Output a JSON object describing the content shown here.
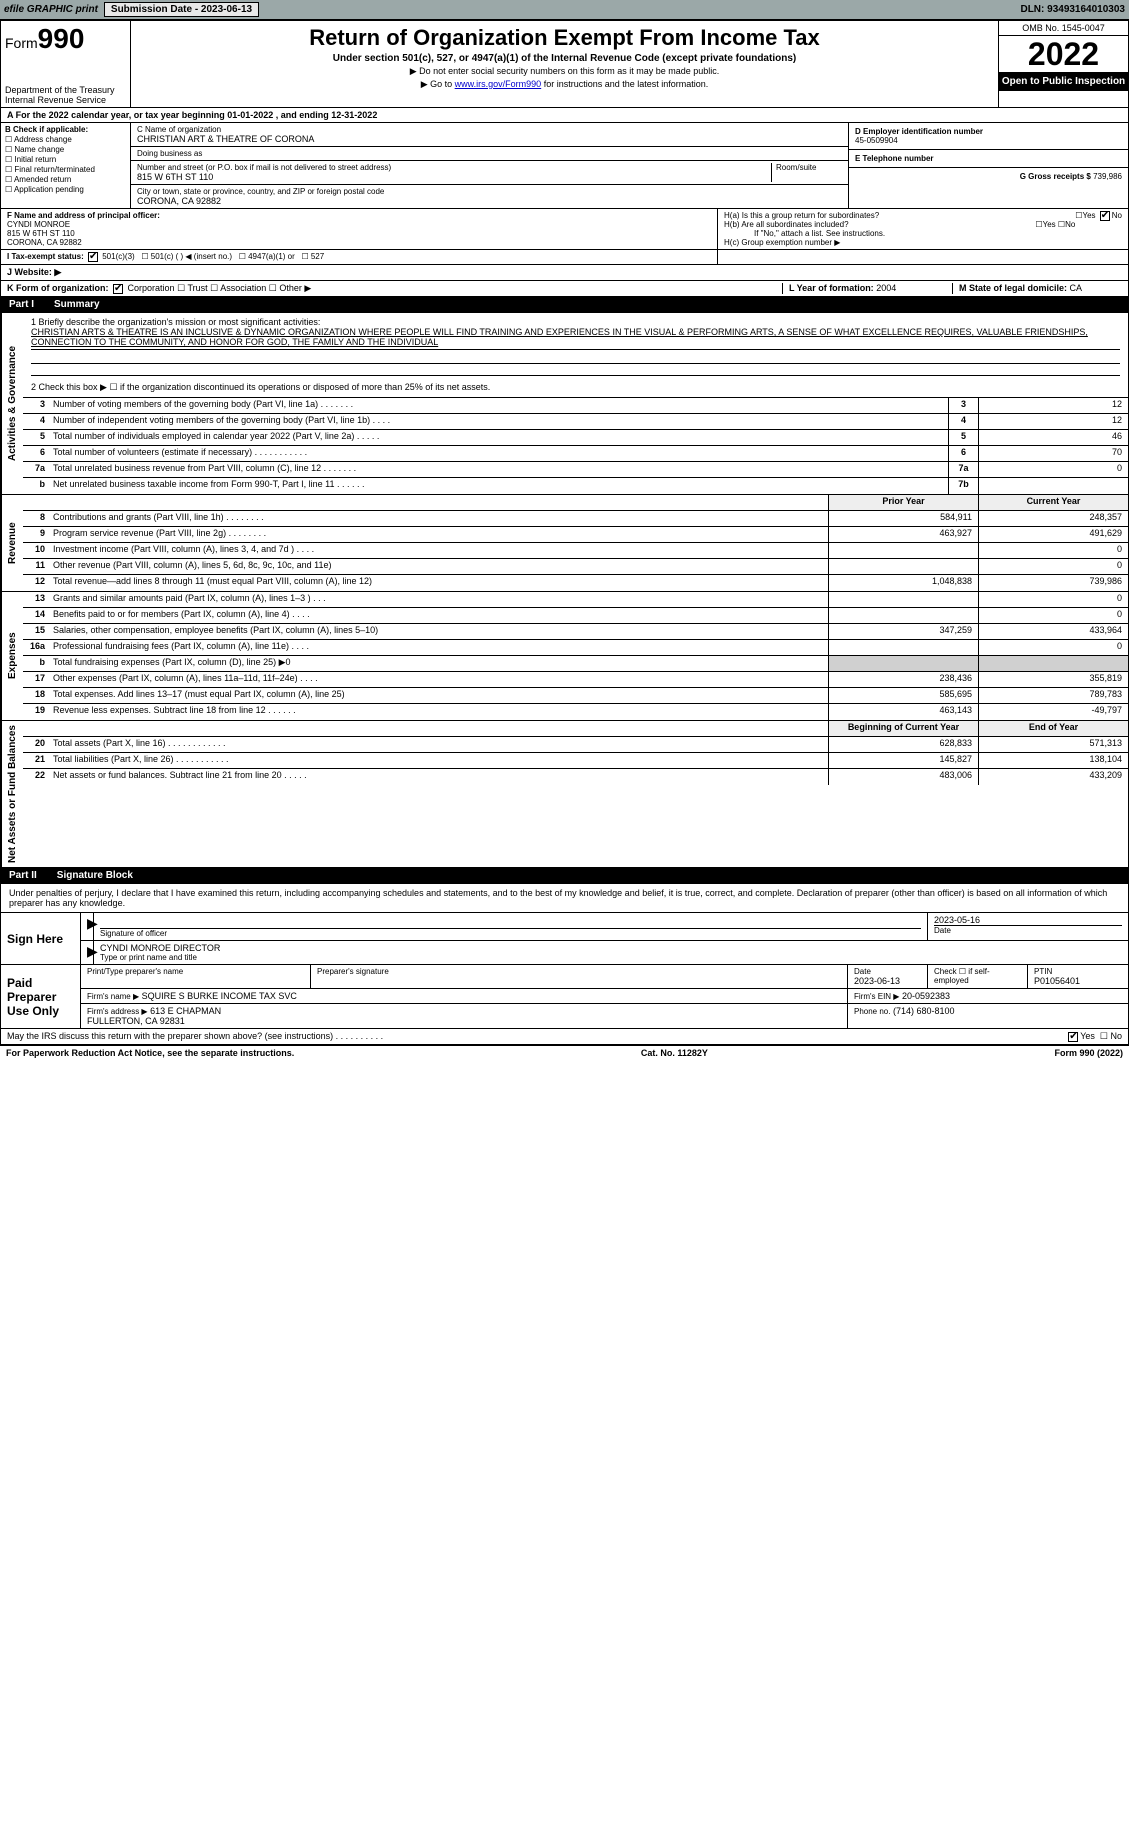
{
  "topbar": {
    "efile": "efile GRAPHIC print",
    "submission_label": "Submission Date - 2023-06-13",
    "dln": "DLN: 93493164010303"
  },
  "header": {
    "form_label": "Form",
    "form_num": "990",
    "title": "Return of Organization Exempt From Income Tax",
    "subtitle": "Under section 501(c), 527, or 4947(a)(1) of the Internal Revenue Code (except private foundations)",
    "note1": "▶ Do not enter social security numbers on this form as it may be made public.",
    "note2_pre": "▶ Go to ",
    "note2_url": "www.irs.gov/Form990",
    "note2_post": " for instructions and the latest information.",
    "dept": "Department of the Treasury",
    "irs": "Internal Revenue Service",
    "omb": "OMB No. 1545-0047",
    "year": "2022",
    "openpub": "Open to Public Inspection"
  },
  "line_a": "A For the 2022 calendar year, or tax year beginning 01-01-2022    , and ending 12-31-2022",
  "box_b": {
    "label": "B Check if applicable:",
    "items": [
      "Address change",
      "Name change",
      "Initial return",
      "Final return/terminated",
      "Amended return",
      "Application pending"
    ]
  },
  "box_c": {
    "name_lbl": "C Name of organization",
    "name": "CHRISTIAN ART & THEATRE OF CORONA",
    "dba_lbl": "Doing business as",
    "street_lbl": "Number and street (or P.O. box if mail is not delivered to street address)",
    "room_lbl": "Room/suite",
    "street": "815 W 6TH ST 110",
    "city_lbl": "City or town, state or province, country, and ZIP or foreign postal code",
    "city": "CORONA, CA  92882"
  },
  "box_d": {
    "lbl": "D Employer identification number",
    "val": "45-0509904"
  },
  "box_e": {
    "lbl": "E Telephone number",
    "val": ""
  },
  "box_g": {
    "lbl": "G Gross receipts $",
    "val": "739,986"
  },
  "box_f": {
    "lbl": "F  Name and address of principal officer:",
    "val": "CYNDI MONROE\n815 W 6TH ST 110\nCORONA, CA  92882"
  },
  "box_h": {
    "ha": "H(a)  Is this a group return for subordinates?",
    "ha_yes": "Yes",
    "ha_no": "No",
    "hb": "H(b)  Are all subordinates included?",
    "hb_yes": "Yes",
    "hb_no": "No",
    "hb_note": "If \"No,\" attach a list. See instructions.",
    "hc": "H(c)  Group exemption number ▶"
  },
  "box_i": {
    "lbl": "I  Tax-exempt status:",
    "o1": "501(c)(3)",
    "o2": "501(c) (   ) ◀ (insert no.)",
    "o3": "4947(a)(1) or",
    "o4": "527"
  },
  "box_j": {
    "lbl": "J  Website: ▶"
  },
  "box_k": {
    "lbl": "K Form of organization:",
    "o1": "Corporation",
    "o2": "Trust",
    "o3": "Association",
    "o4": "Other ▶"
  },
  "box_l": {
    "lbl": "L Year of formation:",
    "val": "2004"
  },
  "box_m": {
    "lbl": "M State of legal domicile:",
    "val": "CA"
  },
  "part1": {
    "num": "Part I",
    "title": "Summary"
  },
  "summary": {
    "q1_lbl": "1 Briefly describe the organization's mission or most significant activities:",
    "q1_text": "CHRISTIAN ARTS & THEATRE IS AN INCLUSIVE & DYNAMIC ORGANIZATION WHERE PEOPLE WILL FIND TRAINING AND EXPERIENCES IN THE VISUAL & PERFORMING ARTS, A SENSE OF WHAT EXCELLENCE REQUIRES, VALUABLE FRIENDSHIPS, CONNECTION TO THE COMMUNITY, AND HONOR FOR GOD, THE FAMILY AND THE INDIVIDUAL",
    "q2": "2   Check this box ▶ ☐  if the organization discontinued its operations or disposed of more than 25% of its net assets."
  },
  "side_labels": {
    "gov": "Activities & Governance",
    "rev": "Revenue",
    "exp": "Expenses",
    "net": "Net Assets or Fund Balances"
  },
  "gov_lines": [
    {
      "n": "3",
      "d": "Number of voting members of the governing body (Part VI, line 1a)  .   .   .   .   .   .   .",
      "c": "3",
      "v": "12"
    },
    {
      "n": "4",
      "d": "Number of independent voting members of the governing body (Part VI, line 1b)  .   .   .   .",
      "c": "4",
      "v": "12"
    },
    {
      "n": "5",
      "d": "Total number of individuals employed in calendar year 2022 (Part V, line 2a)  .   .   .   .   .",
      "c": "5",
      "v": "46"
    },
    {
      "n": "6",
      "d": "Total number of volunteers (estimate if necessary)   .   .   .   .   .   .   .   .   .   .   .",
      "c": "6",
      "v": "70"
    },
    {
      "n": "7a",
      "d": "Total unrelated business revenue from Part VIII, column (C), line 12  .   .   .   .   .   .   .",
      "c": "7a",
      "v": "0"
    },
    {
      "n": "b",
      "d": "Net unrelated business taxable income from Form 990-T, Part I, line 11  .   .   .   .   .   .",
      "c": "7b",
      "v": ""
    }
  ],
  "col_hdr": {
    "prior": "Prior Year",
    "current": "Current Year"
  },
  "rev_lines": [
    {
      "n": "8",
      "d": "Contributions and grants (Part VIII, line 1h)   .   .   .   .   .   .   .   .",
      "p": "584,911",
      "c": "248,357"
    },
    {
      "n": "9",
      "d": "Program service revenue (Part VIII, line 2g)   .   .   .   .   .   .   .   .",
      "p": "463,927",
      "c": "491,629"
    },
    {
      "n": "10",
      "d": "Investment income (Part VIII, column (A), lines 3, 4, and 7d )   .   .   .   .",
      "p": "",
      "c": "0"
    },
    {
      "n": "11",
      "d": "Other revenue (Part VIII, column (A), lines 5, 6d, 8c, 9c, 10c, and 11e)",
      "p": "",
      "c": "0"
    },
    {
      "n": "12",
      "d": "Total revenue—add lines 8 through 11 (must equal Part VIII, column (A), line 12)",
      "p": "1,048,838",
      "c": "739,986"
    }
  ],
  "exp_lines": [
    {
      "n": "13",
      "d": "Grants and similar amounts paid (Part IX, column (A), lines 1–3 )  .   .   .",
      "p": "",
      "c": "0"
    },
    {
      "n": "14",
      "d": "Benefits paid to or for members (Part IX, column (A), line 4)  .   .   .   .",
      "p": "",
      "c": "0"
    },
    {
      "n": "15",
      "d": "Salaries, other compensation, employee benefits (Part IX, column (A), lines 5–10)",
      "p": "347,259",
      "c": "433,964"
    },
    {
      "n": "16a",
      "d": "Professional fundraising fees (Part IX, column (A), line 11e)  .   .   .   .",
      "p": "",
      "c": "0"
    },
    {
      "n": "b",
      "d": "Total fundraising expenses (Part IX, column (D), line 25) ▶0",
      "p": "",
      "c": "",
      "shade": true
    },
    {
      "n": "17",
      "d": "Other expenses (Part IX, column (A), lines 11a–11d, 11f–24e)  .   .   .   .",
      "p": "238,436",
      "c": "355,819"
    },
    {
      "n": "18",
      "d": "Total expenses. Add lines 13–17 (must equal Part IX, column (A), line 25)",
      "p": "585,695",
      "c": "789,783"
    },
    {
      "n": "19",
      "d": "Revenue less expenses. Subtract line 18 from line 12  .   .   .   .   .   .",
      "p": "463,143",
      "c": "-49,797"
    }
  ],
  "net_hdr": {
    "begin": "Beginning of Current Year",
    "end": "End of Year"
  },
  "net_lines": [
    {
      "n": "20",
      "d": "Total assets (Part X, line 16)  .   .   .   .   .   .   .   .   .   .   .   .",
      "p": "628,833",
      "c": "571,313"
    },
    {
      "n": "21",
      "d": "Total liabilities (Part X, line 26)  .   .   .   .   .   .   .   .   .   .   .",
      "p": "145,827",
      "c": "138,104"
    },
    {
      "n": "22",
      "d": "Net assets or fund balances. Subtract line 21 from line 20  .   .   .   .   .",
      "p": "483,006",
      "c": "433,209"
    }
  ],
  "part2": {
    "num": "Part II",
    "title": "Signature Block"
  },
  "sig": {
    "penalty": "Under penalties of perjury, I declare that I have examined this return, including accompanying schedules and statements, and to the best of my knowledge and belief, it is true, correct, and complete. Declaration of preparer (other than officer) is based on all information of which preparer has any knowledge.",
    "sign_here": "Sign Here",
    "sig_officer": "Signature of officer",
    "sig_date": "2023-05-16",
    "date_lbl": "Date",
    "name_title": "CYNDI MONROE  DIRECTOR",
    "name_title_lbl": "Type or print name and title",
    "paid": "Paid Preparer Use Only",
    "prep_name_lbl": "Print/Type preparer's name",
    "prep_sig_lbl": "Preparer's signature",
    "prep_date_lbl": "Date",
    "prep_date": "2023-06-13",
    "check_lbl": "Check ☐ if self-employed",
    "ptin_lbl": "PTIN",
    "ptin": "P01056401",
    "firm_name_lbl": "Firm's name   ▶",
    "firm_name": "SQUIRE S BURKE INCOME TAX SVC",
    "firm_ein_lbl": "Firm's EIN ▶",
    "firm_ein": "20-0592383",
    "firm_addr_lbl": "Firm's address ▶",
    "firm_addr": "613 E CHAPMAN\nFULLERTON, CA  92831",
    "phone_lbl": "Phone no.",
    "phone": "(714) 680-8100",
    "may_irs": "May the IRS discuss this return with the preparer shown above? (see instructions)  .   .   .   .   .   .   .   .   .   .",
    "yes": "Yes",
    "no": "No"
  },
  "footer": {
    "left": "For Paperwork Reduction Act Notice, see the separate instructions.",
    "mid": "Cat. No. 11282Y",
    "right": "Form 990 (2022)"
  },
  "colors": {
    "topbar_bg": "#9ba8a8",
    "black": "#000000",
    "white": "#ffffff",
    "link": "#0000cc",
    "shade": "#d0d0d0",
    "hdr_shade": "#eeeeee"
  }
}
